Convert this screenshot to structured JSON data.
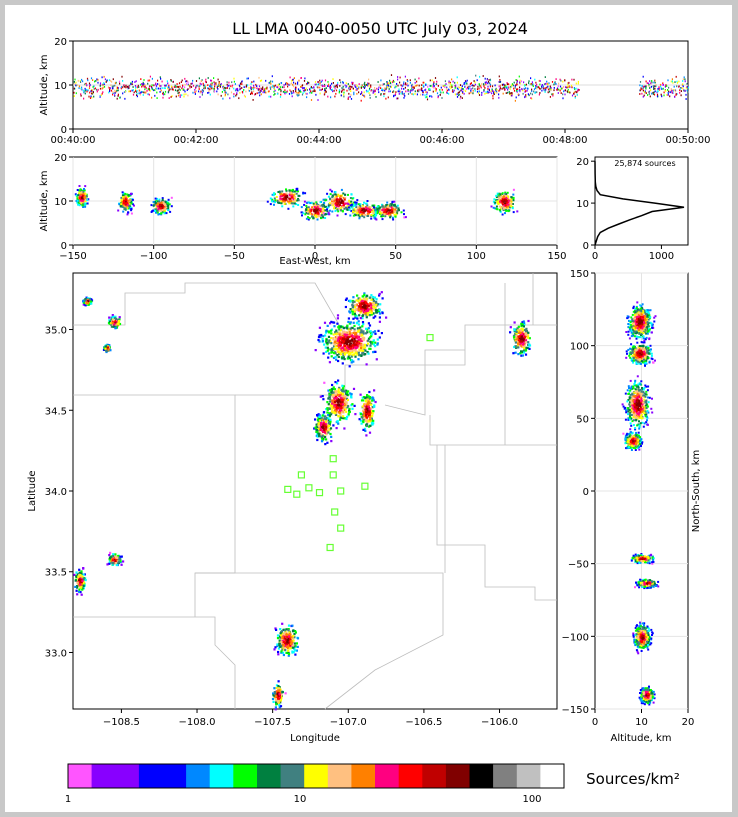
{
  "title": "LL LMA 0040-0050 UTC July 03, 2024",
  "source_count_label": "25,874 sources",
  "colorbar": {
    "label": "Sources/km²",
    "ticks": [
      "1",
      "10",
      "100"
    ],
    "colors": [
      "#ff55ff",
      "#8800ff",
      "#8800ff",
      "#0000ff",
      "#0000ff",
      "#0088ff",
      "#00ffff",
      "#00ff00",
      "#008040",
      "#408080",
      "#ffff00",
      "#ffc080",
      "#ff8000",
      "#ff0080",
      "#ff0000",
      "#c00000",
      "#800000",
      "#000000",
      "#808080",
      "#c0c0c0",
      "#ffffff"
    ]
  },
  "chart_data": [
    {
      "type": "scatter",
      "panel": "altitude-time",
      "xlabel": "",
      "ylabel": "Altitude, km",
      "x_ticks": [
        "00:40:00",
        "00:42:00",
        "00:44:00",
        "00:46:00",
        "00:48:00",
        "00:50:00"
      ],
      "xlim": [
        "00:40:00",
        "00:50:00"
      ],
      "ylim": [
        0,
        20
      ],
      "y_ticks": [
        0,
        10,
        20
      ],
      "activity_intervals_min": [
        [
          0.0,
          8.2
        ],
        [
          9.2,
          10.0
        ]
      ]
    },
    {
      "type": "heatmap",
      "panel": "altitude-east-west",
      "xlabel": "East-West, km",
      "ylabel": "Altitude, km",
      "xlim": [
        -150,
        150
      ],
      "ylim": [
        0,
        20
      ],
      "x_ticks": [
        -150,
        -100,
        -50,
        0,
        50,
        100,
        150
      ],
      "y_ticks": [
        0,
        10,
        20
      ],
      "clusters": [
        {
          "x": -145,
          "z": 11,
          "w": 5,
          "h": 6
        },
        {
          "x": -118,
          "z": 10,
          "w": 6,
          "h": 6
        },
        {
          "x": -96,
          "z": 9,
          "w": 8,
          "h": 5
        },
        {
          "x": -18,
          "z": 11,
          "w": 14,
          "h": 6
        },
        {
          "x": 0,
          "z": 8,
          "w": 12,
          "h": 6
        },
        {
          "x": 15,
          "z": 10,
          "w": 14,
          "h": 7
        },
        {
          "x": 30,
          "z": 8,
          "w": 14,
          "h": 5
        },
        {
          "x": 45,
          "z": 8,
          "w": 12,
          "h": 5
        },
        {
          "x": 117,
          "z": 10,
          "w": 10,
          "h": 7
        }
      ]
    },
    {
      "type": "line",
      "panel": "altitude-histogram",
      "xlabel": "",
      "ylabel": "",
      "xlim": [
        0,
        1400
      ],
      "ylim": [
        0,
        21
      ],
      "x_ticks": [
        0,
        1000
      ],
      "y_ticks": [
        0,
        10,
        20
      ],
      "profile": [
        [
          0,
          0
        ],
        [
          40,
          2
        ],
        [
          80,
          3
        ],
        [
          200,
          4
        ],
        [
          360,
          5
        ],
        [
          520,
          6
        ],
        [
          700,
          7
        ],
        [
          860,
          8
        ],
        [
          1340,
          9
        ],
        [
          900,
          10
        ],
        [
          420,
          11
        ],
        [
          80,
          12
        ],
        [
          30,
          13
        ],
        [
          12,
          14
        ],
        [
          5,
          15
        ],
        [
          2,
          17
        ],
        [
          0,
          20
        ]
      ]
    },
    {
      "type": "heatmap",
      "panel": "plan-view",
      "xlabel": "Longitude",
      "ylabel": "Latitude",
      "xlim": [
        -108.82,
        -105.62
      ],
      "ylim": [
        32.65,
        35.35
      ],
      "x_ticks": [
        -108.5,
        -108.0,
        -107.5,
        -107.0,
        -106.5,
        -106.0
      ],
      "y_ticks": [
        33.0,
        33.5,
        34.0,
        34.5,
        35.0
      ],
      "stations": [
        [
          -106.46,
          34.95
        ],
        [
          -107.1,
          34.2
        ],
        [
          -107.31,
          34.1
        ],
        [
          -107.1,
          34.1
        ],
        [
          -107.4,
          34.01
        ],
        [
          -107.26,
          34.02
        ],
        [
          -107.34,
          33.98
        ],
        [
          -107.19,
          33.99
        ],
        [
          -107.05,
          34.0
        ],
        [
          -106.89,
          34.03
        ],
        [
          -107.09,
          33.87
        ],
        [
          -107.05,
          33.77
        ],
        [
          -107.12,
          33.65
        ]
      ],
      "clusters": [
        {
          "lon": -108.73,
          "lat": 35.18,
          "w": 0.04,
          "h": 0.03
        },
        {
          "lon": -108.55,
          "lat": 35.05,
          "w": 0.06,
          "h": 0.05
        },
        {
          "lon": -108.6,
          "lat": 34.89,
          "w": 0.03,
          "h": 0.03
        },
        {
          "lon": -106.9,
          "lat": 35.15,
          "w": 0.16,
          "h": 0.11
        },
        {
          "lon": -107.0,
          "lat": 34.93,
          "w": 0.26,
          "h": 0.17
        },
        {
          "lon": -107.07,
          "lat": 34.55,
          "w": 0.13,
          "h": 0.17
        },
        {
          "lon": -107.17,
          "lat": 34.4,
          "w": 0.08,
          "h": 0.12
        },
        {
          "lon": -106.88,
          "lat": 34.5,
          "w": 0.07,
          "h": 0.16
        },
        {
          "lon": -105.86,
          "lat": 34.95,
          "w": 0.09,
          "h": 0.14
        },
        {
          "lon": -108.55,
          "lat": 33.58,
          "w": 0.06,
          "h": 0.05
        },
        {
          "lon": -108.78,
          "lat": 33.45,
          "w": 0.05,
          "h": 0.09
        },
        {
          "lon": -107.41,
          "lat": 33.08,
          "w": 0.1,
          "h": 0.13
        },
        {
          "lon": -107.47,
          "lat": 32.74,
          "w": 0.05,
          "h": 0.1
        }
      ]
    },
    {
      "type": "heatmap",
      "panel": "north-south-altitude",
      "xlabel": "Altitude, km",
      "ylabel": "North-South, km",
      "xlim": [
        0,
        20
      ],
      "ylim": [
        -150,
        150
      ],
      "x_ticks": [
        0,
        10,
        20
      ],
      "y_ticks": [
        -150,
        -100,
        -50,
        0,
        50,
        100,
        150
      ],
      "clusters": [
        {
          "z": 9.5,
          "y": 117,
          "w": 3.5,
          "h": 16
        },
        {
          "z": 9.5,
          "y": 95,
          "w": 3.5,
          "h": 10
        },
        {
          "z": 9,
          "y": 60,
          "w": 3.5,
          "h": 22
        },
        {
          "z": 8,
          "y": 35,
          "w": 2.5,
          "h": 8
        },
        {
          "z": 10,
          "y": -46,
          "w": 3.5,
          "h": 4
        },
        {
          "z": 11,
          "y": -63,
          "w": 3,
          "h": 4
        },
        {
          "z": 10,
          "y": -100,
          "w": 2.5,
          "h": 12
        },
        {
          "z": 11,
          "y": -140,
          "w": 2,
          "h": 8
        }
      ]
    }
  ]
}
